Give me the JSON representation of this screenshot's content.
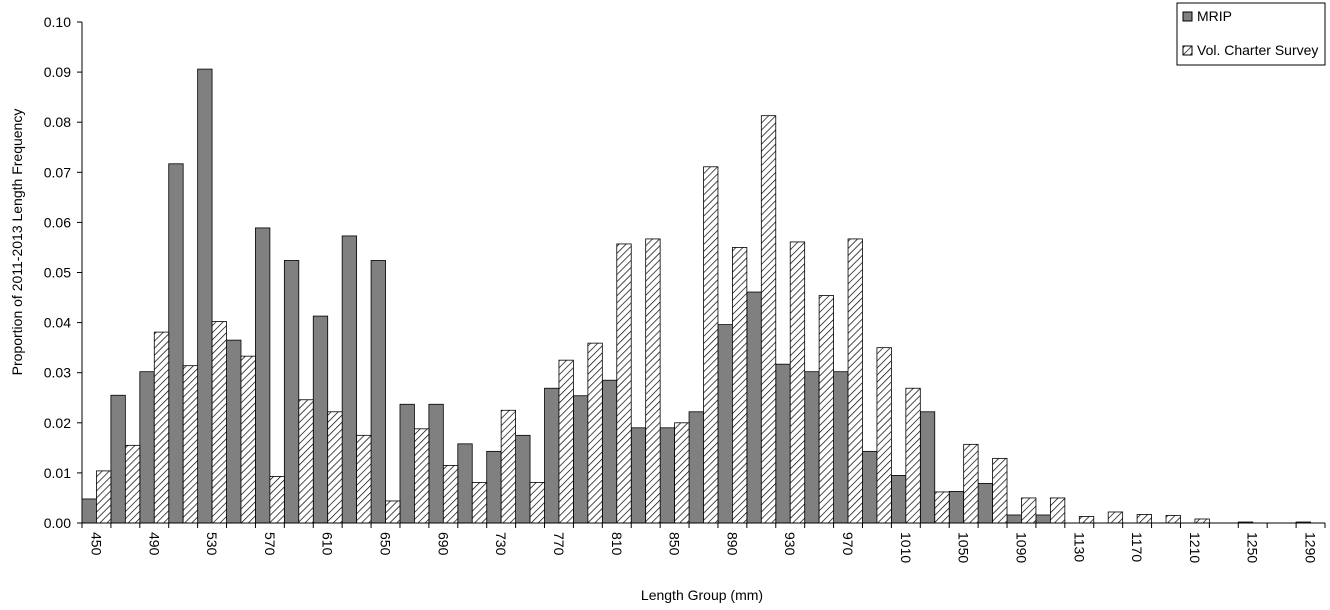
{
  "chart_data": {
    "type": "bar",
    "title": "",
    "xlabel": "Length Group (mm)",
    "ylabel": "Proportion of 2011-2013 Length Frequency",
    "ylim": [
      0,
      0.1
    ],
    "yticks": [
      "0.00",
      "0.01",
      "0.02",
      "0.03",
      "0.04",
      "0.05",
      "0.06",
      "0.07",
      "0.08",
      "0.09",
      "0.10"
    ],
    "categories": [
      450,
      470,
      490,
      510,
      530,
      550,
      570,
      590,
      610,
      630,
      650,
      670,
      690,
      710,
      730,
      750,
      770,
      790,
      810,
      830,
      850,
      870,
      890,
      910,
      930,
      950,
      970,
      990,
      1010,
      1030,
      1050,
      1070,
      1090,
      1110,
      1130,
      1150,
      1170,
      1190,
      1210,
      1230,
      1250,
      1270,
      1290
    ],
    "xtick_labels": [
      "450",
      "490",
      "530",
      "570",
      "610",
      "650",
      "690",
      "730",
      "770",
      "810",
      "850",
      "890",
      "930",
      "970",
      "1010",
      "1050",
      "1090",
      "1130",
      "1170",
      "1210",
      "1250",
      "1290"
    ],
    "legend_position": "top-right",
    "series": [
      {
        "name": "MRIP",
        "color": "#808080",
        "pattern": "solid",
        "values": [
          0.0048,
          0.0255,
          0.0302,
          0.0717,
          0.0906,
          0.0365,
          0.0589,
          0.0524,
          0.0413,
          0.0573,
          0.0524,
          0.0237,
          0.0237,
          0.0158,
          0.0143,
          0.0175,
          0.0269,
          0.0254,
          0.0285,
          0.019,
          0.019,
          0.0222,
          0.0396,
          0.0461,
          0.0317,
          0.0302,
          0.0302,
          0.0143,
          0.0095,
          0.0222,
          0.0063,
          0.0079,
          0.0016,
          0.0016,
          0,
          0,
          0,
          0,
          0,
          0,
          0.0002,
          0,
          0.0002
        ]
      },
      {
        "name": "Vol. Charter Survey",
        "color": "#ffffff",
        "pattern": "hatch",
        "values": [
          0.0104,
          0.0155,
          0.0381,
          0.0314,
          0.0402,
          0.0333,
          0.0093,
          0.0246,
          0.0222,
          0.0175,
          0.0044,
          0.0188,
          0.0115,
          0.0081,
          0.0225,
          0.0081,
          0.0325,
          0.0359,
          0.0557,
          0.0567,
          0.02,
          0.0711,
          0.055,
          0.0813,
          0.0561,
          0.0454,
          0.0567,
          0.035,
          0.0269,
          0.0062,
          0.0157,
          0.0129,
          0.005,
          0.005,
          0.0013,
          0.0022,
          0.0017,
          0.0015,
          0.0008,
          0,
          0,
          0,
          0
        ]
      }
    ]
  }
}
